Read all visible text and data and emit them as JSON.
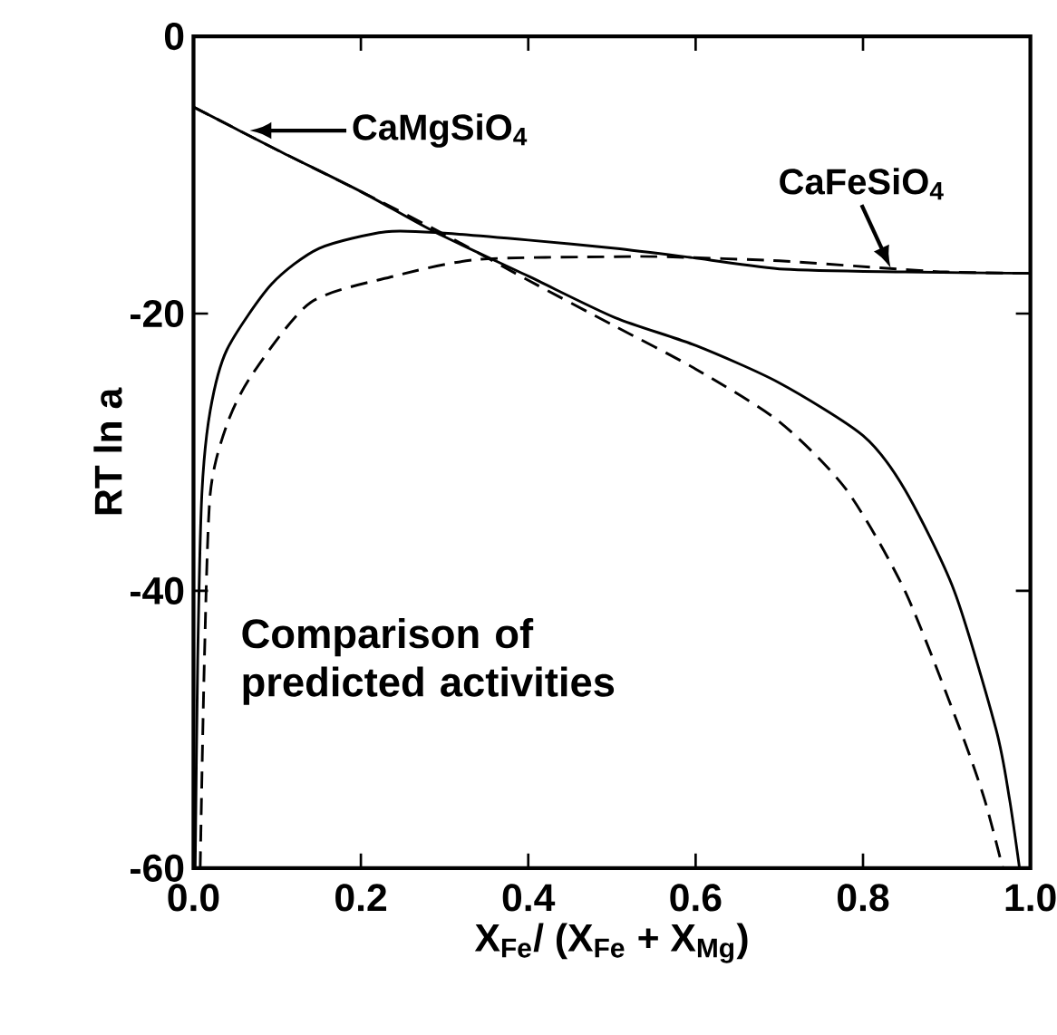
{
  "chart_data": {
    "type": "line",
    "xlabel": "X$_{Fe}$/ (X$_{Fe}$ + X$_{Mg}$)",
    "ylabel": "RT ln a",
    "xlim": [
      0,
      1
    ],
    "ylim": [
      -60,
      0
    ],
    "xticks": [
      {
        "value": 0,
        "label": "0.0"
      },
      0.2,
      0.4,
      0.6,
      0.8,
      {
        "value": 1,
        "label": "1.0"
      }
    ],
    "yticks": [
      0,
      -20,
      -40,
      -60
    ],
    "series": [
      {
        "color": "#000000",
        "line_style": "solid",
        "x": [
          0,
          0.1,
          0.2,
          0.288,
          0.4,
          0.504,
          0.6,
          0.7,
          0.8,
          0.85,
          0.909,
          0.959,
          0.975,
          0.987
        ],
        "values": [
          -5.1,
          -8.2,
          -11.2,
          -14.1,
          -17.3,
          -20.3,
          -22.3,
          -25,
          -28.8,
          -32.7,
          -40,
          -50,
          -55,
          -60
        ]
      },
      {
        "color": "#000000",
        "line_style": "dashed",
        "x": [
          0,
          0.1,
          0.2,
          0.3,
          0.4,
          0.5,
          0.6,
          0.7,
          0.78,
          0.85,
          0.916,
          0.945,
          0.967
        ],
        "values": [
          -5.1,
          -8.2,
          -11.2,
          -14.3,
          -17.6,
          -20.8,
          -24,
          -27.8,
          -32.7,
          -40,
          -50,
          -55,
          -60
        ]
      },
      {
        "color": "#000000",
        "line_style": "solid",
        "x": [
          0.002,
          0.005,
          0.01,
          0.02,
          0.04,
          0.093,
          0.15,
          0.23,
          0.3,
          0.4,
          0.504,
          0.6,
          0.706,
          0.85,
          1.0
        ],
        "values": [
          -60,
          -45,
          -33,
          -27,
          -22.6,
          -17.9,
          -15.3,
          -14.1,
          -14.2,
          -14.7,
          -15.3,
          -16,
          -16.8,
          -17,
          -17.1
        ]
      },
      {
        "color": "#000000",
        "line_style": "dashed",
        "x": [
          0.008,
          0.013,
          0.02,
          0.04,
          0.07,
          0.14,
          0.24,
          0.34,
          0.504,
          0.56,
          0.7,
          0.82,
          0.9,
          1.0
        ],
        "values": [
          -60,
          -45,
          -33,
          -28,
          -24.4,
          -19.2,
          -17.3,
          -16.1,
          -15.9,
          -15.9,
          -16.2,
          -16.7,
          -17,
          -17.1
        ]
      }
    ],
    "annotations": [
      {
        "text": "CaMgSiO$_{4}$",
        "x": 0.067,
        "y": -6.8
      },
      {
        "text": "CaFeSiO$_{4}$",
        "x": 0.833,
        "y": -16.7
      },
      "Comparison of predicted activities"
    ]
  }
}
